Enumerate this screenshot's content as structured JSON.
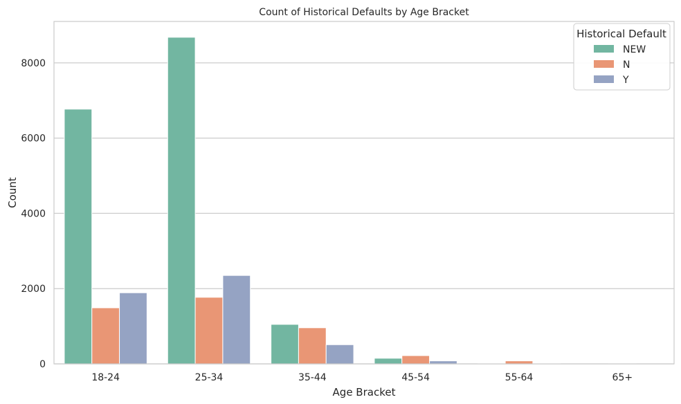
{
  "chart_data": {
    "type": "bar",
    "title": "Count of Historical Defaults by Age Bracket",
    "xlabel": "Age Bracket",
    "ylabel": "Count",
    "categories": [
      "18-24",
      "25-34",
      "35-44",
      "45-54",
      "55-64",
      "65+"
    ],
    "ylim": [
      0,
      9100
    ],
    "yticks": [
      0,
      2000,
      4000,
      6000,
      8000
    ],
    "grid": "horizontal",
    "legend": {
      "title": "Historical Default",
      "position": "top-right"
    },
    "series": [
      {
        "name": "NEW",
        "color": "#72b6a1",
        "values": [
          6770,
          8680,
          1050,
          150,
          10,
          0
        ]
      },
      {
        "name": "N",
        "color": "#e99675",
        "values": [
          1490,
          1770,
          960,
          220,
          80,
          5
        ]
      },
      {
        "name": "Y",
        "color": "#95a3c3",
        "values": [
          1890,
          2350,
          510,
          80,
          10,
          0
        ]
      }
    ]
  }
}
